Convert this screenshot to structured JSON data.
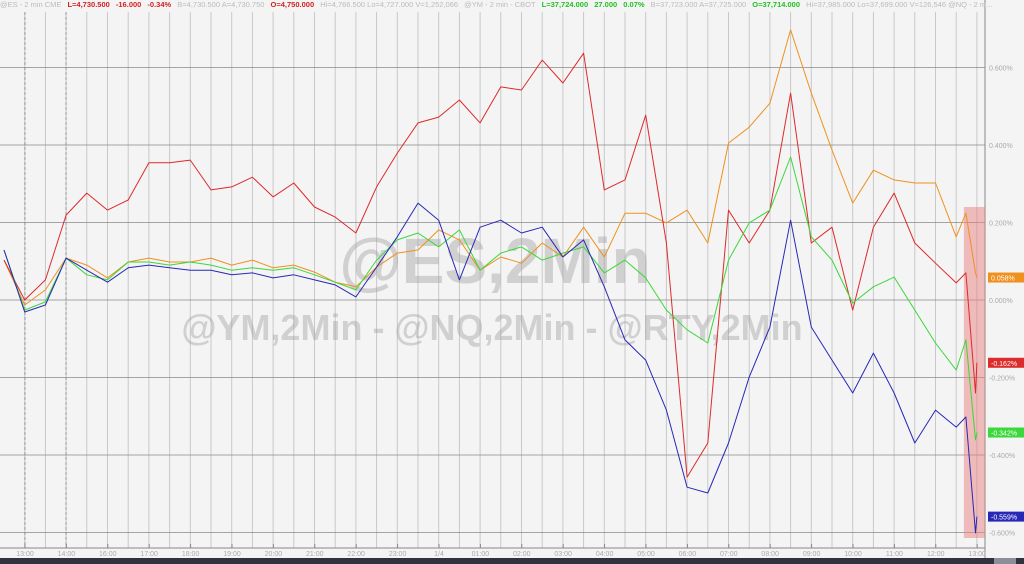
{
  "header": {
    "es_symbol": "@ES - 2 min  CME",
    "es_last": "L=4,730.500",
    "es_change": "-16.000",
    "es_pct": "-0.34%",
    "es_bidask": "B=4,730.500  A=4,730.750",
    "es_open": "O=4,750.000",
    "es_stats": "Hi=4,766.500  Lo=4,727.000  V=1,252,066",
    "ym_symbol": "@YM - 2 min - CBOT",
    "ym_last": "L=37,724.000",
    "ym_change": "27.000",
    "ym_pct": "0.07%",
    "ym_bidask": "B=37,723.000  A=37,725.000",
    "ym_open": "O=37,714.000",
    "ym_stats": "Hi=37,985.000  Lo=37,699.000  V=126,546  @NQ - 2 m..."
  },
  "chart_data": {
    "type": "line",
    "watermark_main": "@ES,2Min",
    "watermark_sub": "@YM,2Min - @NQ,2Min - @RTY,2Min",
    "ylim": [
      -0.62,
      0.72
    ],
    "y_unit": "%",
    "y_ticks": [
      0.6,
      0.4,
      0.2,
      0.0,
      -0.2,
      -0.4,
      -0.6
    ],
    "y_tick_labels": [
      "0.600%",
      "0.400%",
      "0.200%",
      "0.000%",
      "-0.200%",
      "-0.400%",
      "-0.600%"
    ],
    "x_tick_labels": [
      "13:00",
      "14:00",
      "16:00",
      "17:00",
      "18:00",
      "19:00",
      "20:00",
      "21:00",
      "22:00",
      "23:00",
      "1/4",
      "01:00",
      "02:00",
      "03:00",
      "04:00",
      "05:00",
      "06:00",
      "07:00",
      "08:00",
      "09:00",
      "10:00",
      "11:00",
      "12:00",
      "13:00"
    ],
    "grid": true,
    "highlight_region": {
      "from": "12:44",
      "to": "13:00",
      "color": "#e88080"
    },
    "x": [
      "12:30",
      "13:00",
      "13:30",
      "14:00",
      "14:30",
      "16:00",
      "16:30",
      "17:00",
      "17:30",
      "18:00",
      "18:30",
      "19:00",
      "19:30",
      "20:00",
      "20:30",
      "21:00",
      "21:30",
      "22:00",
      "22:30",
      "23:00",
      "23:30",
      "00:00",
      "00:30",
      "01:00",
      "01:30",
      "02:00",
      "02:30",
      "03:00",
      "03:30",
      "04:00",
      "04:30",
      "05:00",
      "05:30",
      "06:00",
      "06:30",
      "07:00",
      "07:30",
      "08:00",
      "08:30",
      "09:00",
      "09:30",
      "10:00",
      "10:30",
      "11:00",
      "11:30",
      "12:00",
      "12:30",
      "12:44",
      "12:58",
      "13:00"
    ],
    "series": [
      {
        "color": "#f0901e",
        "last_label": "0.058%",
        "values": [
          0.103,
          -0.013,
          0.026,
          0.108,
          0.09,
          0.057,
          0.098,
          0.108,
          0.098,
          0.098,
          0.108,
          0.09,
          0.103,
          0.083,
          0.09,
          0.072,
          0.046,
          0.034,
          0.085,
          0.121,
          0.129,
          0.181,
          0.155,
          0.077,
          0.111,
          0.095,
          0.147,
          0.111,
          0.188,
          0.111,
          0.224,
          0.224,
          0.199,
          0.232,
          0.147,
          0.405,
          0.446,
          0.508,
          0.697,
          0.534,
          0.387,
          0.25,
          0.335,
          0.31,
          0.302,
          0.302,
          0.163,
          0.224,
          0.07,
          0.058
        ]
      },
      {
        "color": "#dd2a2a",
        "last_label": "-0.162%",
        "values": [
          0.103,
          0.0,
          0.052,
          0.219,
          0.276,
          0.232,
          0.258,
          0.354,
          0.354,
          0.361,
          0.284,
          0.292,
          0.317,
          0.266,
          0.302,
          0.24,
          0.214,
          0.173,
          0.292,
          0.379,
          0.457,
          0.472,
          0.516,
          0.457,
          0.55,
          0.542,
          0.619,
          0.56,
          0.637,
          0.284,
          0.31,
          0.477,
          0.147,
          -0.457,
          -0.369,
          0.232,
          0.147,
          0.232,
          0.534,
          0.147,
          0.188,
          -0.026,
          0.188,
          0.276,
          0.147,
          0.095,
          0.044,
          0.07,
          -0.24,
          -0.162
        ]
      },
      {
        "color": "#3ad83a",
        "last_label": "-0.342%",
        "values": [
          0.129,
          -0.026,
          -0.005,
          0.108,
          0.065,
          0.052,
          0.098,
          0.098,
          0.09,
          0.098,
          0.09,
          0.077,
          0.083,
          0.077,
          0.083,
          0.065,
          0.046,
          0.026,
          0.103,
          0.155,
          0.173,
          0.137,
          0.181,
          0.077,
          0.121,
          0.137,
          0.103,
          0.121,
          0.137,
          0.07,
          0.103,
          0.057,
          -0.026,
          -0.077,
          -0.111,
          0.103,
          0.199,
          0.232,
          0.369,
          0.163,
          0.103,
          -0.008,
          0.034,
          0.059,
          -0.026,
          -0.111,
          -0.181,
          -0.103,
          -0.361,
          -0.342
        ]
      },
      {
        "color": "#2828b8",
        "last_label": "-0.559%",
        "values": [
          0.129,
          -0.031,
          -0.013,
          0.108,
          0.077,
          0.046,
          0.083,
          0.09,
          0.083,
          0.077,
          0.077,
          0.065,
          0.07,
          0.057,
          0.065,
          0.052,
          0.039,
          0.008,
          0.085,
          0.163,
          0.25,
          0.206,
          0.052,
          0.188,
          0.206,
          0.173,
          0.188,
          0.111,
          0.155,
          0.034,
          -0.103,
          -0.155,
          -0.284,
          -0.483,
          -0.498,
          -0.369,
          -0.199,
          -0.07,
          0.206,
          -0.07,
          -0.155,
          -0.24,
          -0.137,
          -0.24,
          -0.369,
          -0.284,
          -0.328,
          -0.302,
          -0.601,
          -0.559
        ]
      }
    ]
  }
}
